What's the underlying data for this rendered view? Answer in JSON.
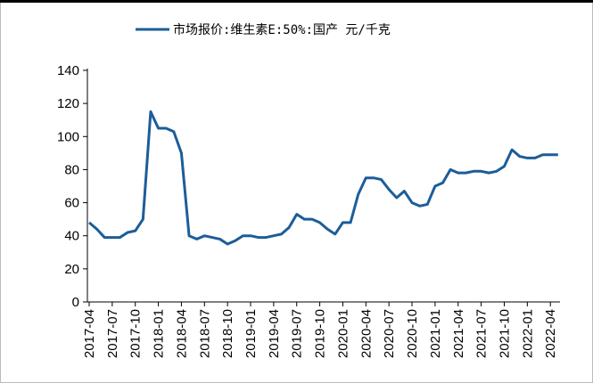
{
  "chart_data": {
    "type": "line",
    "series": [
      {
        "name": "市场报价:维生素E:50%:国产  元/千克",
        "color": "#1c5d99",
        "values": [
          48,
          44,
          39,
          39,
          39,
          42,
          43,
          50,
          115,
          105,
          105,
          103,
          90,
          40,
          38,
          40,
          39,
          38,
          35,
          37,
          40,
          40,
          39,
          39,
          40,
          41,
          45,
          53,
          50,
          50,
          48,
          44,
          41,
          48,
          48,
          65,
          75,
          75,
          74,
          68,
          63,
          67,
          60,
          58,
          59,
          70,
          72,
          80,
          78,
          78,
          79,
          79,
          78,
          79,
          82,
          92,
          88,
          87,
          87,
          89,
          89,
          89
        ]
      }
    ],
    "x": [
      "2017-04",
      "2017-05",
      "2017-06",
      "2017-07",
      "2017-08",
      "2017-09",
      "2017-10",
      "2017-11",
      "2017-12",
      "2018-01",
      "2018-02",
      "2018-03",
      "2018-04",
      "2018-05",
      "2018-06",
      "2018-07",
      "2018-08",
      "2018-09",
      "2018-10",
      "2018-11",
      "2018-12",
      "2019-01",
      "2019-02",
      "2019-03",
      "2019-04",
      "2019-05",
      "2019-06",
      "2019-07",
      "2019-08",
      "2019-09",
      "2019-10",
      "2019-11",
      "2019-12",
      "2020-01",
      "2020-02",
      "2020-03",
      "2020-04",
      "2020-05",
      "2020-06",
      "2020-07",
      "2020-08",
      "2020-09",
      "2020-10",
      "2020-11",
      "2020-12",
      "2021-01",
      "2021-02",
      "2021-03",
      "2021-04",
      "2021-05",
      "2021-06",
      "2021-07",
      "2021-08",
      "2021-09",
      "2021-10",
      "2021-11",
      "2021-12",
      "2022-01",
      "2022-02",
      "2022-03",
      "2022-04",
      "2022-05"
    ],
    "xticks": [
      "2017-04",
      "2017-07",
      "2017-10",
      "2018-01",
      "2018-04",
      "2018-07",
      "2018-10",
      "2019-01",
      "2019-04",
      "2019-07",
      "2019-10",
      "2020-01",
      "2020-04",
      "2020-07",
      "2020-10",
      "2021-01",
      "2021-04",
      "2021-07",
      "2021-10",
      "2022-01",
      "2022-04"
    ],
    "ylim": [
      0,
      140
    ],
    "yticks": [
      0,
      20,
      40,
      60,
      80,
      100,
      120,
      140
    ],
    "legend": "top"
  }
}
